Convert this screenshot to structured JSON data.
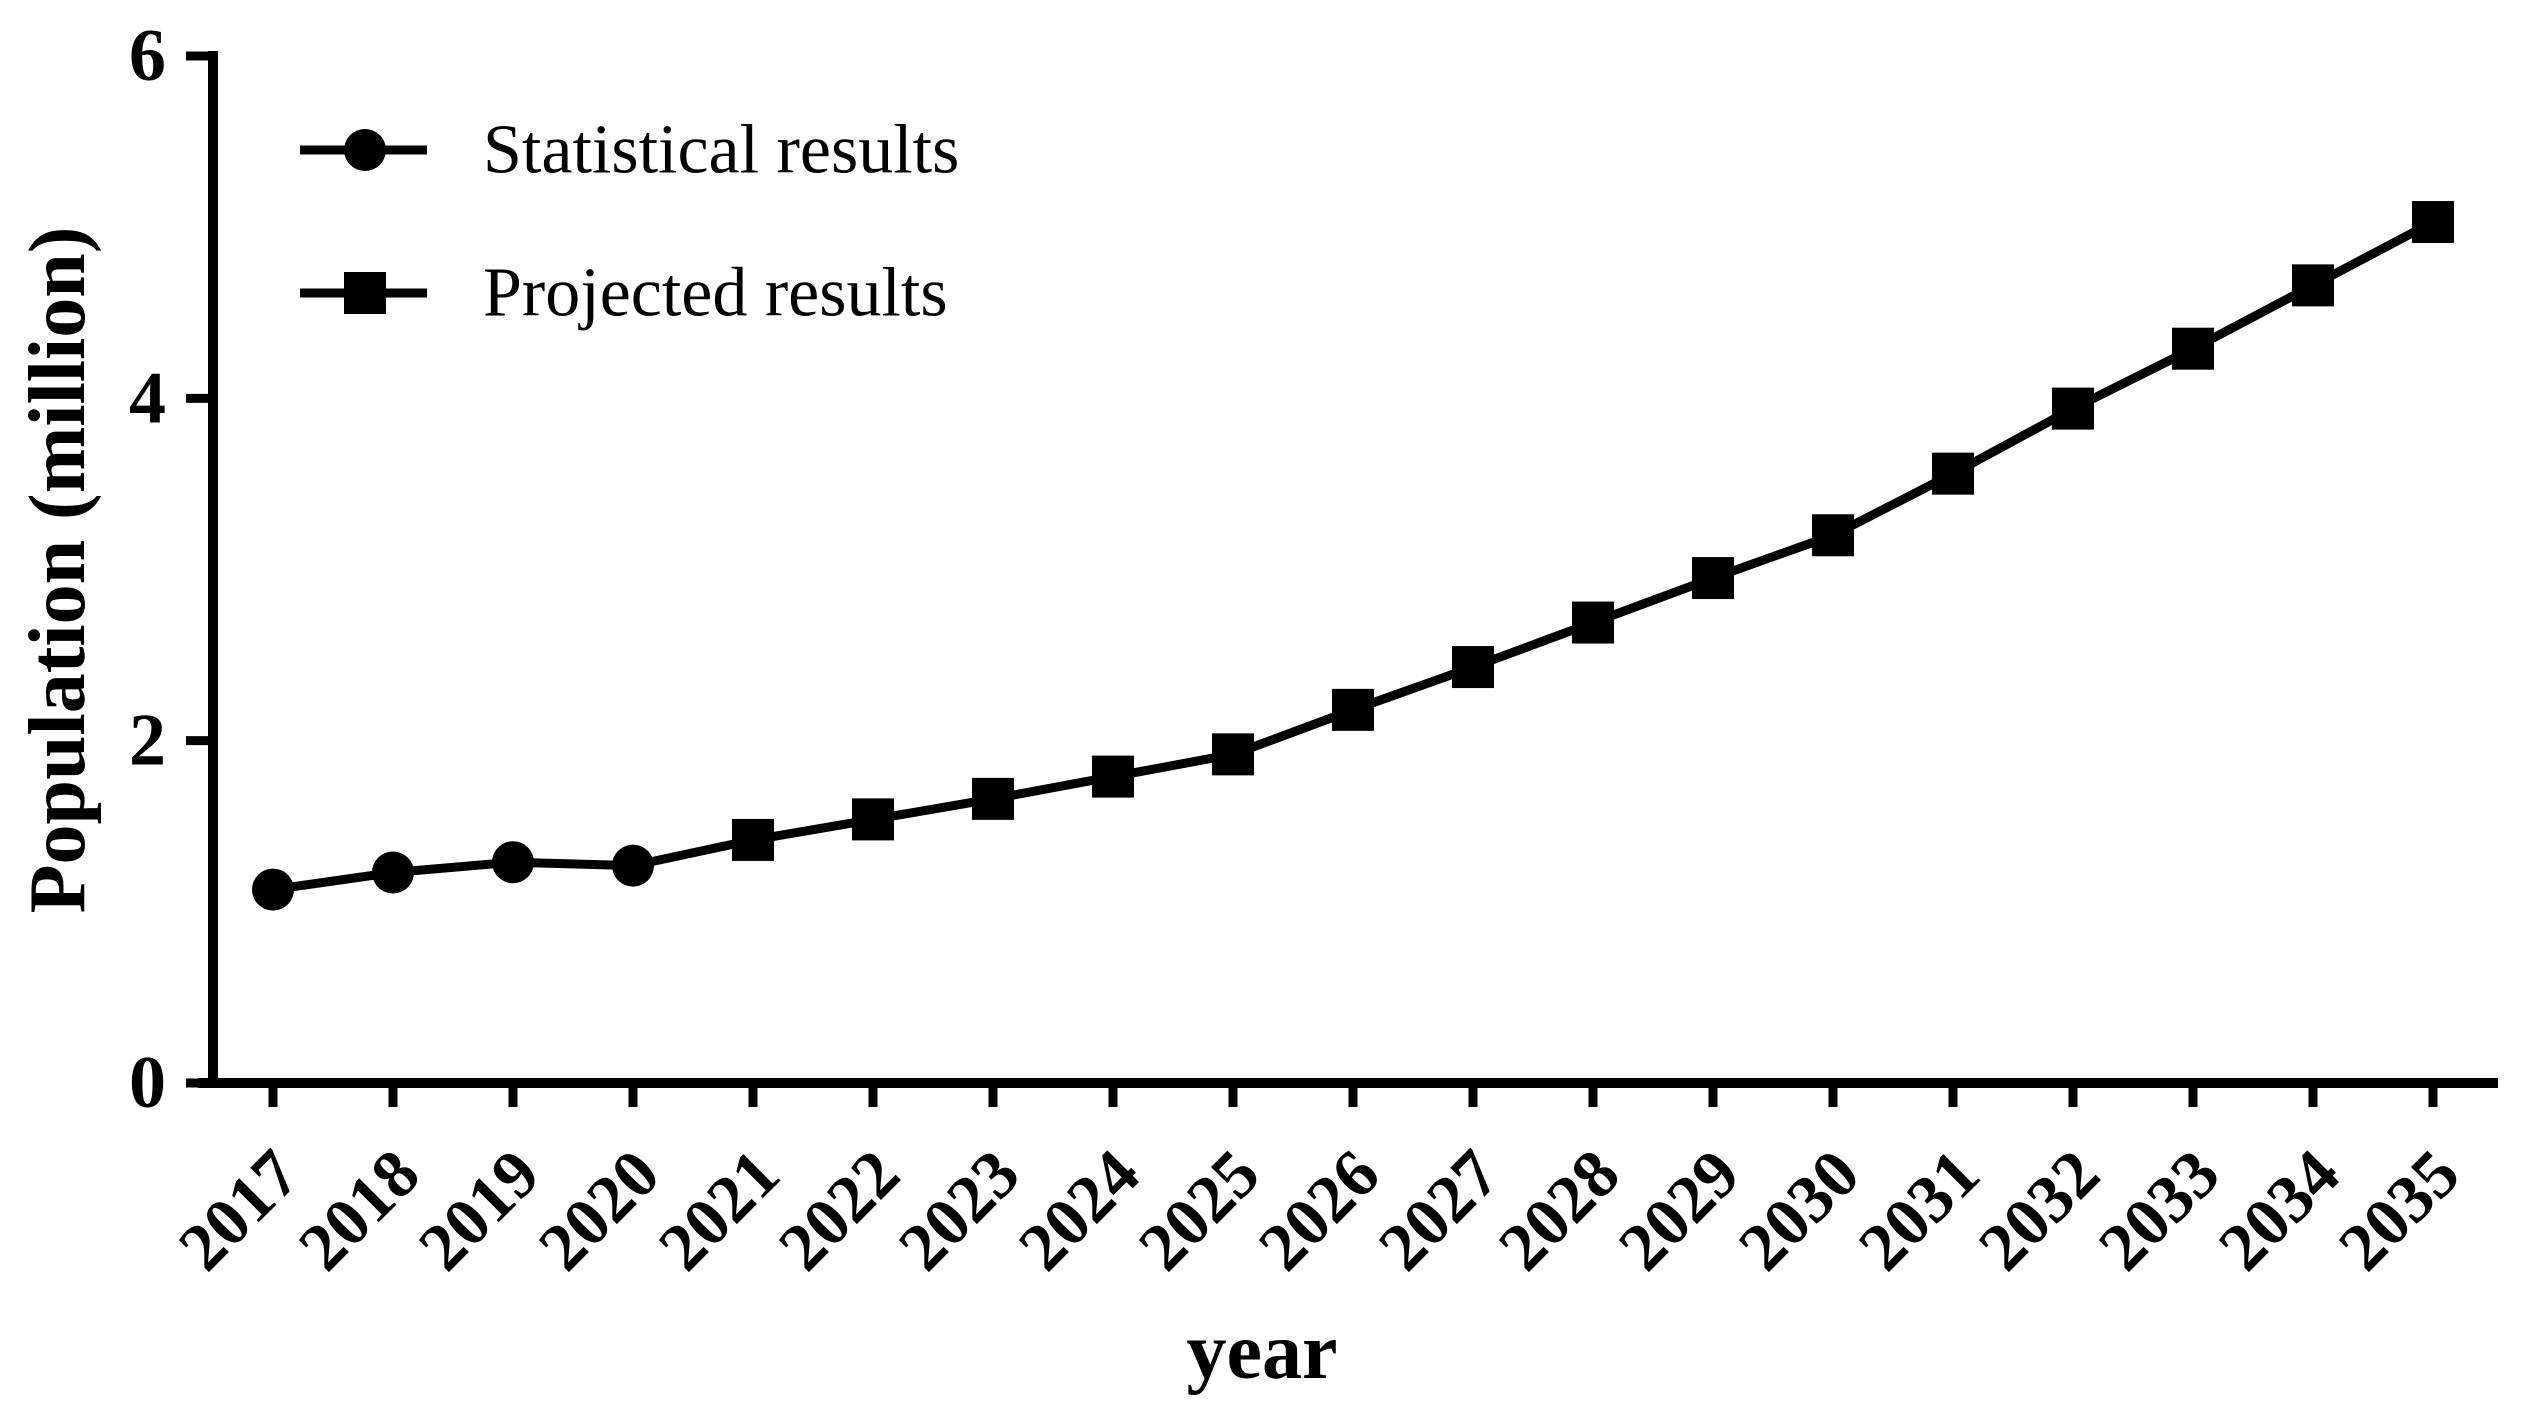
{
  "figure": {
    "background": "#ffffff",
    "series_color": "#000000",
    "text_color": "#000000"
  },
  "chart_data": {
    "type": "line",
    "title": "",
    "xlabel": "year",
    "ylabel": "Population (million)",
    "x": [
      2017,
      2018,
      2019,
      2020,
      2021,
      2022,
      2023,
      2024,
      2025,
      2026,
      2027,
      2028,
      2029,
      2030,
      2031,
      2032,
      2033,
      2034,
      2035
    ],
    "series": [
      {
        "name": "Statistical results",
        "marker": "circle",
        "x": [
          2017,
          2018,
          2019,
          2020
        ],
        "values": [
          1.13,
          1.23,
          1.29,
          1.27
        ]
      },
      {
        "name": "Projected results",
        "marker": "square",
        "x": [
          2021,
          2022,
          2023,
          2024,
          2025,
          2026,
          2027,
          2028,
          2029,
          2030,
          2031,
          2032,
          2033,
          2034,
          2035
        ],
        "values": [
          1.42,
          1.54,
          1.66,
          1.79,
          1.92,
          2.18,
          2.43,
          2.69,
          2.95,
          3.2,
          3.56,
          3.94,
          4.29,
          4.66,
          5.03
        ]
      }
    ],
    "connected_line": true,
    "ylim": [
      0,
      6
    ],
    "yticks": [
      0,
      2,
      4,
      6
    ],
    "grid": false,
    "legend_position": "top-left"
  },
  "legend": {
    "items": [
      {
        "label": "Statistical results",
        "marker": "circle-marker-icon"
      },
      {
        "label": "Projected results",
        "marker": "square-marker-icon"
      }
    ]
  }
}
